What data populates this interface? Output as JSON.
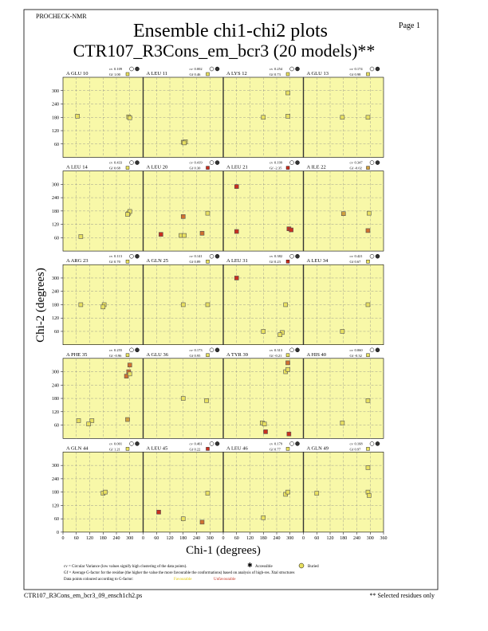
{
  "page": {
    "program": "PROCHECK-NMR",
    "page_label": "Page 1",
    "title": "Ensemble chi1-chi2 plots",
    "subtitle": "CTR107_R3Cons_em_bcr3 (20 models)**",
    "cv_label": "cv",
    "gf_label": "Gf",
    "note_cv": "cv = Circular Variance (low values signify high clustering of the data points).",
    "accessible": "Accessible",
    "buried": "Buried",
    "note_gf": "Gf = Average G-factor for the residue (the higher the value the more favourable the conformations) based on analysis of high-res. Xtal structures",
    "note_colour": "Data points coloured according to G-factor:",
    "favourable": "Favourable",
    "unfavourable": "Unfavourable",
    "footer_file": "CTR107_R3Cons_em_bcr3_09_ensch1ch2.ps",
    "footer_note": "** Selected residues only"
  },
  "axes": {
    "xlabel": "Chi-1 (degrees)",
    "ylabel": "Chi-2 (degrees)",
    "xlim": [
      0,
      360
    ],
    "ylim": [
      0,
      360
    ],
    "xticks": [
      0,
      60,
      120,
      180,
      240,
      300,
      360
    ],
    "yticks": [
      0,
      60,
      120,
      180,
      240,
      300
    ],
    "grid": true
  },
  "chart_data": [
    {
      "type": "scatter",
      "title": "A GLU 10",
      "cv": "0.109",
      "gf": "1.00",
      "x": [
        65,
        295,
        300
      ],
      "y": [
        185,
        182,
        178
      ],
      "colors": [
        "#e8e060",
        "#e8e060",
        "#e8e060"
      ]
    },
    {
      "type": "scatter",
      "title": "A LEU 11",
      "cv": "0.002",
      "gf": "0.46",
      "x": [
        180,
        190,
        185
      ],
      "y": [
        68,
        70,
        65
      ],
      "colors": [
        "#e8e060",
        "#e8e060",
        "#e8e060"
      ]
    },
    {
      "type": "scatter",
      "title": "A LYS 12",
      "cv": "0.254",
      "gf": "0.73",
      "x": [
        180,
        290,
        290
      ],
      "y": [
        180,
        290,
        185
      ],
      "colors": [
        "#e8e060",
        "#e8e060",
        "#e8e060"
      ]
    },
    {
      "type": "scatter",
      "title": "A GLU 13",
      "cv": "0.174",
      "gf": "0.98",
      "x": [
        175,
        290
      ],
      "y": [
        180,
        180
      ],
      "colors": [
        "#e8e060",
        "#e8e060"
      ]
    },
    {
      "type": "scatter",
      "title": "A LEU 14",
      "cv": "0.433",
      "gf": "0.68",
      "x": [
        80,
        295,
        300,
        290
      ],
      "y": [
        65,
        170,
        178,
        165
      ],
      "colors": [
        "#e8e060",
        "#e8e060",
        "#e8e060",
        "#e8e060"
      ]
    },
    {
      "type": "scatter",
      "title": "A LEU 20",
      "cv": "0.419",
      "gf": "0.30",
      "x": [
        80,
        180,
        170,
        185,
        265,
        290
      ],
      "y": [
        75,
        155,
        70,
        70,
        80,
        170
      ],
      "colors": [
        "#c83020",
        "#d07030",
        "#e8e060",
        "#e8e060",
        "#d07030",
        "#e8e060"
      ]
    },
    {
      "type": "scatter",
      "title": "A LEU 21",
      "cv": "0.199",
      "gf": "-2.35",
      "x": [
        60,
        60,
        295,
        305
      ],
      "y": [
        290,
        88,
        100,
        95
      ],
      "colors": [
        "#c83020",
        "#c83020",
        "#c83020",
        "#c83020"
      ]
    },
    {
      "type": "scatter",
      "title": "A ILE 22",
      "cv": "0.347",
      "gf": "-0.02",
      "x": [
        180,
        295,
        290
      ],
      "y": [
        168,
        170,
        92
      ],
      "colors": [
        "#d0a040",
        "#e8e060",
        "#d07030"
      ]
    },
    {
      "type": "scatter",
      "title": "A ARG 23",
      "cv": "0.113",
      "gf": "0.70",
      "x": [
        80,
        185,
        180
      ],
      "y": [
        180,
        180,
        170
      ],
      "colors": [
        "#e8e060",
        "#e8e060",
        "#e8e060"
      ]
    },
    {
      "type": "scatter",
      "title": "A GLN 25",
      "cv": "0.141",
      "gf": "0.89",
      "x": [
        180,
        290
      ],
      "y": [
        180,
        180
      ],
      "colors": [
        "#e8e060",
        "#e8e060"
      ]
    },
    {
      "type": "scatter",
      "title": "A LEU 31",
      "cv": "0.382",
      "gf": "0.23",
      "x": [
        60,
        180,
        280,
        265,
        255
      ],
      "y": [
        300,
        60,
        180,
        55,
        45
      ],
      "colors": [
        "#c83020",
        "#e8e060",
        "#e8e060",
        "#e8e060",
        "#e8e060"
      ]
    },
    {
      "type": "scatter",
      "title": "A LEU 34",
      "cv": "0.421",
      "gf": "0.67",
      "x": [
        175,
        290
      ],
      "y": [
        60,
        180
      ],
      "colors": [
        "#e8e060",
        "#e8e060"
      ]
    },
    {
      "type": "scatter",
      "title": "A PHE 35",
      "cv": "0.255",
      "gf": "-0.96",
      "x": [
        70,
        130,
        115,
        290,
        300,
        295,
        285,
        300
      ],
      "y": [
        80,
        80,
        65,
        85,
        330,
        300,
        280,
        290
      ],
      "colors": [
        "#e8e060",
        "#e8e060",
        "#e8e060",
        "#d0a040",
        "#d07030",
        "#d07030",
        "#d07030",
        "#e8e060"
      ]
    },
    {
      "type": "scatter",
      "title": "A GLU 36",
      "cv": "0.173",
      "gf": "0.95",
      "x": [
        180,
        285
      ],
      "y": [
        180,
        170
      ],
      "colors": [
        "#e8e060",
        "#e8e060"
      ]
    },
    {
      "type": "scatter",
      "title": "A TYR 39",
      "cv": "0.313",
      "gf": "-0.21",
      "x": [
        175,
        185,
        190,
        295,
        280,
        290,
        290
      ],
      "y": [
        70,
        65,
        30,
        20,
        300,
        340,
        310
      ],
      "colors": [
        "#e8e060",
        "#e8e060",
        "#c83020",
        "#c83020",
        "#e8e060",
        "#d07030",
        "#e8e060"
      ]
    },
    {
      "type": "scatter",
      "title": "A HIS 40",
      "cv": "0.060",
      "gf": "-0.32",
      "x": [
        175,
        290
      ],
      "y": [
        70,
        170
      ],
      "colors": [
        "#e8e060",
        "#e8e060"
      ]
    },
    {
      "type": "scatter",
      "title": "A GLN 44",
      "cv": "0.001",
      "gf": "1.21",
      "x": [
        180,
        190
      ],
      "y": [
        175,
        180
      ],
      "colors": [
        "#e8e060",
        "#e8e060"
      ]
    },
    {
      "type": "scatter",
      "title": "A LEU 45",
      "cv": "0.461",
      "gf": "0.22",
      "x": [
        70,
        180,
        265,
        290
      ],
      "y": [
        90,
        60,
        45,
        175
      ],
      "colors": [
        "#c83020",
        "#e8e060",
        "#d07030",
        "#e8e060"
      ]
    },
    {
      "type": "scatter",
      "title": "A LEU 46",
      "cv": "0.179",
      "gf": "0.77",
      "x": [
        180,
        280,
        290
      ],
      "y": [
        65,
        170,
        180
      ],
      "colors": [
        "#e8e060",
        "#e8e060",
        "#e8e060"
      ]
    },
    {
      "type": "scatter",
      "title": "A GLN 49",
      "cv": "0.168",
      "gf": "0.97",
      "x": [
        60,
        290,
        290,
        295
      ],
      "y": [
        175,
        290,
        180,
        165
      ],
      "colors": [
        "#e8e060",
        "#e8e060",
        "#e8e060",
        "#e8e060"
      ]
    }
  ]
}
